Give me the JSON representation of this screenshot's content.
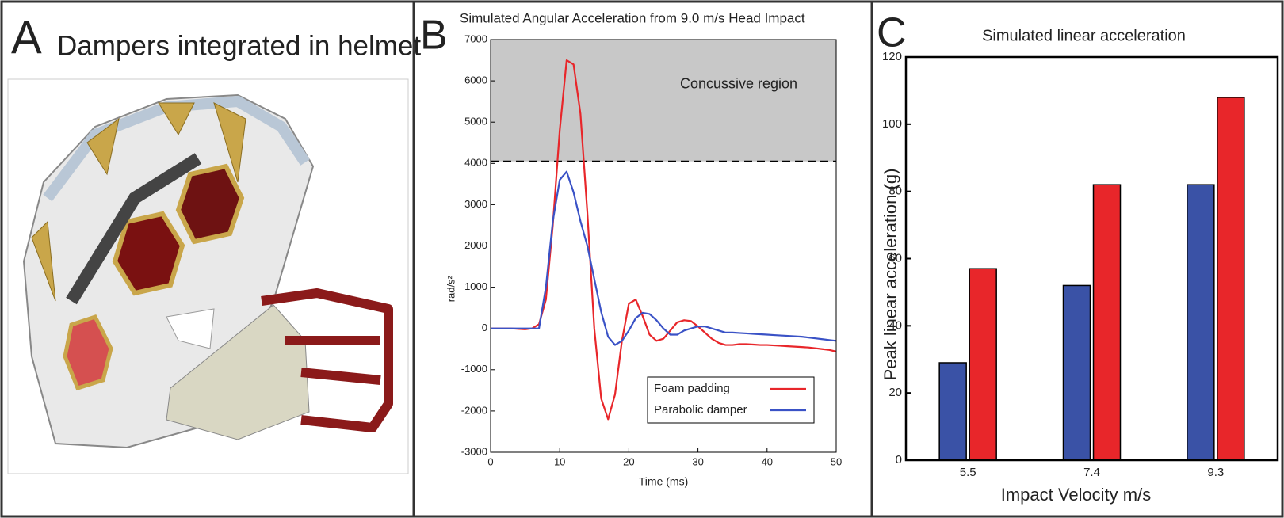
{
  "panel_a": {
    "label": "A",
    "title": "Dampers integrated in helmet"
  },
  "chart_data": [
    {
      "type": "line",
      "label": "B",
      "title": "Simulated Angular Acceleration from 9.0 m/s Head Impact",
      "xlabel": "Time (ms)",
      "ylabel": "rad/s²",
      "annotation": "Concussive region",
      "threshold": 4050,
      "xlim": [
        0,
        50
      ],
      "xticks": [
        0,
        10,
        20,
        30,
        40,
        50
      ],
      "ylim": [
        -3000,
        7000
      ],
      "yticks": [
        -3000,
        -2000,
        -1000,
        0,
        1000,
        2000,
        3000,
        4000,
        5000,
        6000,
        7000
      ],
      "legend": "lower right",
      "x": [
        0,
        1,
        2,
        3,
        4,
        5,
        6,
        7,
        8,
        9,
        10,
        11,
        12,
        13,
        14,
        15,
        16,
        17,
        18,
        19,
        20,
        21,
        22,
        23,
        24,
        25,
        26,
        27,
        28,
        29,
        30,
        31,
        32,
        33,
        34,
        35,
        36,
        37,
        38,
        39,
        40,
        41,
        42,
        43,
        44,
        45,
        46,
        47,
        48,
        49,
        50
      ],
      "series": [
        {
          "name": "Foam padding",
          "color": "#e8262a",
          "values": [
            0,
            0,
            0,
            0,
            -10,
            -20,
            0,
            100,
            700,
            2500,
            4800,
            6500,
            6400,
            5200,
            2800,
            0,
            -1700,
            -2200,
            -1600,
            -300,
            600,
            700,
            300,
            -150,
            -300,
            -250,
            -50,
            150,
            200,
            180,
            50,
            -100,
            -250,
            -350,
            -400,
            -400,
            -380,
            -380,
            -390,
            -400,
            -400,
            -410,
            -420,
            -430,
            -440,
            -450,
            -460,
            -480,
            -500,
            -520,
            -560
          ]
        },
        {
          "name": "Parabolic damper",
          "color": "#3a52c6",
          "values": [
            0,
            0,
            0,
            0,
            0,
            0,
            0,
            0,
            1000,
            2600,
            3600,
            3800,
            3300,
            2600,
            2000,
            1200,
            400,
            -200,
            -400,
            -300,
            -50,
            250,
            380,
            350,
            200,
            0,
            -150,
            -150,
            -50,
            0,
            50,
            50,
            0,
            -50,
            -100,
            -100,
            -110,
            -120,
            -130,
            -140,
            -150,
            -160,
            -170,
            -180,
            -190,
            -200,
            -220,
            -240,
            -260,
            -280,
            -300
          ]
        }
      ]
    },
    {
      "type": "bar",
      "label": "C",
      "title": "Simulated linear acceleration",
      "xlabel": "Impact Velocity m/s",
      "ylabel": "Peak linear acceleration (g)",
      "categories": [
        "5.5",
        "7.4",
        "9.3"
      ],
      "ylim": [
        0,
        120
      ],
      "yticks": [
        0,
        20,
        40,
        60,
        80,
        100,
        120
      ],
      "series": [
        {
          "color": "#3a52a6",
          "values": [
            29,
            52,
            82
          ]
        },
        {
          "color": "#e8262a",
          "values": [
            57,
            82,
            108
          ]
        }
      ]
    }
  ]
}
